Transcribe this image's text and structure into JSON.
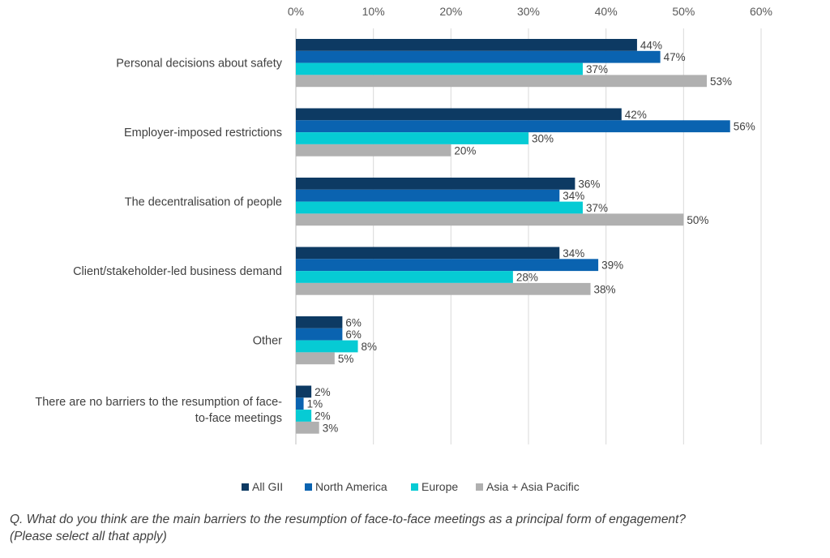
{
  "chart_data": {
    "type": "bar",
    "orientation": "horizontal",
    "categories": [
      "Personal decisions about safety",
      "Employer-imposed restrictions",
      "The decentralisation of people",
      "Client/stakeholder-led business demand",
      "Other",
      "There are no barriers to the resumption of face-to-face meetings"
    ],
    "category_label_lines": [
      [
        "Personal decisions about safety"
      ],
      [
        "Employer-imposed restrictions"
      ],
      [
        "The decentralisation of people"
      ],
      [
        "Client/stakeholder-led business demand"
      ],
      [
        "Other"
      ],
      [
        "There are no barriers to the resumption of face-",
        "to-face meetings"
      ]
    ],
    "series": [
      {
        "name": "All GII",
        "color": "#0d3a63",
        "values": [
          44,
          42,
          36,
          34,
          6,
          2
        ],
        "labels": [
          "44%",
          "42%",
          "36%",
          "34%",
          "6%",
          "2%"
        ]
      },
      {
        "name": "North America",
        "color": "#0a63b0",
        "values": [
          47,
          56,
          34,
          39,
          6,
          1
        ],
        "labels": [
          "47%",
          "56%",
          "34%",
          "39%",
          "6%",
          "1%"
        ]
      },
      {
        "name": "Europe",
        "color": "#06cbd4",
        "values": [
          37,
          30,
          37,
          28,
          8,
          2
        ],
        "labels": [
          "37%",
          "30%",
          "37%",
          "28%",
          "8%",
          "2%"
        ]
      },
      {
        "name": "Asia + Asia Pacific",
        "color": "#b0b0b0",
        "values": [
          53,
          20,
          50,
          38,
          5,
          3
        ],
        "labels": [
          "53%",
          "20%",
          "50%",
          "38%",
          "5%",
          "3%"
        ]
      }
    ],
    "xlim": [
      0,
      60
    ],
    "xticks": [
      0,
      10,
      20,
      30,
      40,
      50,
      60
    ],
    "xtick_labels": [
      "0%",
      "10%",
      "20%",
      "30%",
      "40%",
      "50%",
      "60%"
    ],
    "xaxis_position": "top",
    "grid": true,
    "legend_position": "bottom"
  },
  "caption_lines": [
    "Q. What do you think are the main barriers to the resumption of face-to-face meetings as a principal form of engagement?",
    "(Please select all that apply)"
  ]
}
